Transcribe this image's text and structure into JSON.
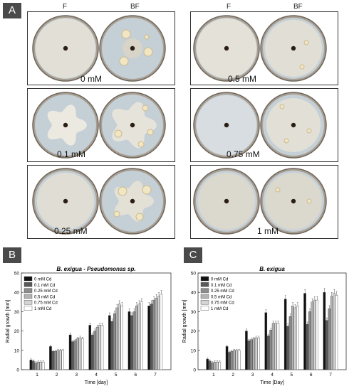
{
  "panel_a": {
    "label": "A",
    "col_f": "F",
    "col_bf": "BF",
    "concentrations_left": [
      "0 mM",
      "0.1 mM",
      "0.25 mM"
    ],
    "concentrations_right": [
      "0.5 mM",
      "0.75 mM",
      "1 mM"
    ]
  },
  "panel_b_label": "B",
  "panel_c_label": "C",
  "chart_data": [
    {
      "type": "bar",
      "title": "B. exigua - Pseudomonas sp.",
      "xlabel": "Time [day]",
      "ylabel": "Radial growth [mm]",
      "ylim": [
        0,
        50
      ],
      "yticks": [
        0,
        10,
        20,
        30,
        40,
        50
      ],
      "categories": [
        "1",
        "2",
        "3",
        "4",
        "5",
        "6",
        "7"
      ],
      "legend_position": "top-left",
      "series": [
        {
          "name": "0 mM Cd",
          "color": "#111111",
          "values": [
            5,
            12,
            18,
            23,
            28,
            30,
            33
          ]
        },
        {
          "name": "0.1 mM Cd",
          "color": "#595959",
          "values": [
            4.5,
            9.5,
            14.5,
            18,
            25,
            28,
            34
          ]
        },
        {
          "name": "0.25 mM Cd",
          "color": "#8c8c8c",
          "values": [
            3.5,
            9.5,
            15,
            20,
            29,
            30,
            36
          ]
        },
        {
          "name": "0.5 mM Cd",
          "color": "#b3b3b3",
          "values": [
            4,
            10,
            16,
            22,
            32,
            33,
            37
          ]
        },
        {
          "name": "0.75 mM Cd",
          "color": "#d4d4d4",
          "values": [
            4,
            10,
            16.5,
            23,
            34,
            34,
            38
          ]
        },
        {
          "name": "1 mM Cd",
          "color": "#ffffff",
          "values": [
            4,
            10,
            16,
            23,
            33,
            35,
            39
          ]
        }
      ]
    },
    {
      "type": "bar",
      "title": "B. exigua",
      "xlabel": "Time [Day]",
      "ylabel": "Radial growth [mm]",
      "ylim": [
        0,
        50
      ],
      "yticks": [
        0,
        10,
        20,
        30,
        40,
        50
      ],
      "categories": [
        "1",
        "2",
        "3",
        "4",
        "5",
        "6",
        "7"
      ],
      "legend_position": "top-left",
      "series": [
        {
          "name": "0 mM Cd",
          "color": "#111111",
          "values": [
            5.5,
            12,
            20,
            29.5,
            36.5,
            39.5,
            40
          ]
        },
        {
          "name": "0.1 mM Cd",
          "color": "#595959",
          "values": [
            4.5,
            9,
            15,
            17.5,
            22.5,
            23.5,
            25.5
          ]
        },
        {
          "name": "0.25 mM Cd",
          "color": "#8c8c8c",
          "values": [
            3.5,
            9.5,
            15.5,
            20.5,
            27.5,
            30,
            31.5
          ]
        },
        {
          "name": "0.5 mM Cd",
          "color": "#b3b3b3",
          "values": [
            4,
            10,
            16,
            24,
            33,
            35,
            38
          ]
        },
        {
          "name": "0.75 mM Cd",
          "color": "#d4d4d4",
          "values": [
            4,
            10,
            16.5,
            24,
            32,
            36,
            39.5
          ]
        },
        {
          "name": "1 mM Cd",
          "color": "#ffffff",
          "values": [
            4,
            10,
            16.5,
            24,
            33,
            36,
            38.5
          ]
        }
      ]
    }
  ]
}
